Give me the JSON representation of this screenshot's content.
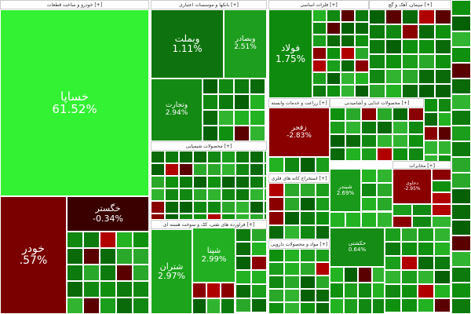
{
  "sectors": [
    {
      "title": "خودرو و ساخت قطعات [+]"
    },
    {
      "title": "بانکها و موسسات اعتباری [+]"
    },
    {
      "title": "فلزات اساسی [+]"
    },
    {
      "title": "سیمان، آهک و گچ [+]"
    },
    {
      "title": "محصولات شیمیایی [+]"
    },
    {
      "title": "فراورده های نفتی، کک و سوخت هسته ای [+]"
    },
    {
      "title": "زراعت و خدمات وابسته [+]"
    },
    {
      "title": "محصولات غذایی و آشامیدنی [+]"
    },
    {
      "title": "استخراج کانه های فلزی [+]"
    },
    {
      "title": "مواد و محصولات دارویی [+]"
    },
    {
      "title": "مخابرات [+]"
    }
  ],
  "tiles": [
    {
      "label": "خساپا",
      "change": "61.52%"
    },
    {
      "label": "خودر",
      "change": ".57%"
    },
    {
      "label": "خگستر",
      "change": "-0.34%"
    },
    {
      "label": "وبملت",
      "change": "1.11%"
    },
    {
      "label": "وبصادر",
      "change": "2.51%"
    },
    {
      "label": "وتجارت",
      "change": "2.94%"
    },
    {
      "label": "فولاد",
      "change": "1.75%"
    },
    {
      "label": "زفجر",
      "change": "-2.83%"
    },
    {
      "label": "شپنا",
      "change": "2.99%"
    },
    {
      "label": "شتران",
      "change": "2.97%"
    },
    {
      "label": "شبندر",
      "change": "2.69%"
    },
    {
      "label": "حکشتی",
      "change": "0.64%"
    },
    {
      "label": "دحاوی",
      "change": "-2.95%"
    }
  ]
}
